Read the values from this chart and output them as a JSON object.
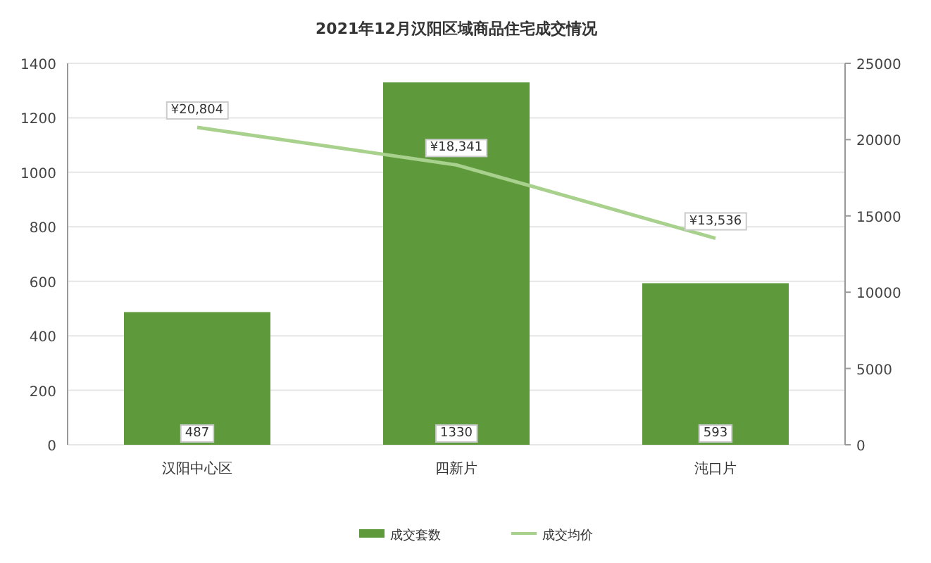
{
  "chart_data": {
    "type": "bar",
    "title": "2021年12月汉阳区域商品住宅成交情况",
    "categories": [
      "汉阳中心区",
      "四新片",
      "沌口片"
    ],
    "series": [
      {
        "name": "成交套数",
        "color": "#5e9a3c",
        "values": [
          487,
          1330,
          593
        ],
        "value_labels": [
          "487",
          "1330",
          "593"
        ]
      },
      {
        "name": "成交均价",
        "type": "line",
        "axis": "y2",
        "color": "#a9d18e",
        "values": [
          20804,
          18341,
          13536
        ],
        "value_labels": [
          "¥20,804",
          "¥18,341",
          "¥13,536"
        ]
      }
    ],
    "ylim": [
      0,
      1400
    ],
    "yticks": [
      0,
      200,
      400,
      600,
      800,
      1000,
      1200,
      1400
    ],
    "y2lim": [
      0,
      25000
    ],
    "y2ticks": [
      0,
      5000,
      10000,
      15000,
      20000,
      25000
    ],
    "grid": "y",
    "legend": "bottom",
    "marker": "none"
  }
}
